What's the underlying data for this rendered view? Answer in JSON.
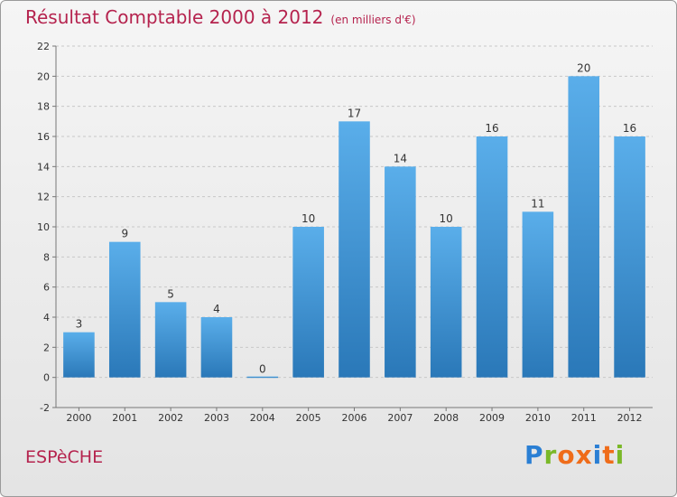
{
  "header": {
    "title": "Résultat Comptable 2000 à 2012",
    "subtitle": "(en milliers d'€)"
  },
  "commune": "ESPèCHE",
  "logo": {
    "text": "Proxiti",
    "colors": [
      "#2a7fd4",
      "#7ab828",
      "#ef6c1a",
      "#ef6c1a",
      "#2a7fd4",
      "#ef6c1a",
      "#7ab828"
    ]
  },
  "colors": {
    "bar_top": "#5aaeea",
    "bar_bottom": "#2a78b8",
    "title": "#b5234e"
  },
  "chart_data": {
    "type": "bar",
    "categories": [
      "2000",
      "2001",
      "2002",
      "2003",
      "2004",
      "2005",
      "2006",
      "2007",
      "2008",
      "2009",
      "2010",
      "2011",
      "2012"
    ],
    "values": [
      3,
      9,
      5,
      4,
      0,
      10,
      17,
      14,
      10,
      16,
      11,
      20,
      16
    ],
    "ylim": [
      -2,
      22
    ],
    "yticks": [
      -2,
      0,
      2,
      4,
      6,
      8,
      10,
      12,
      14,
      16,
      18,
      20,
      22
    ],
    "grid": true,
    "data_labels": true
  }
}
